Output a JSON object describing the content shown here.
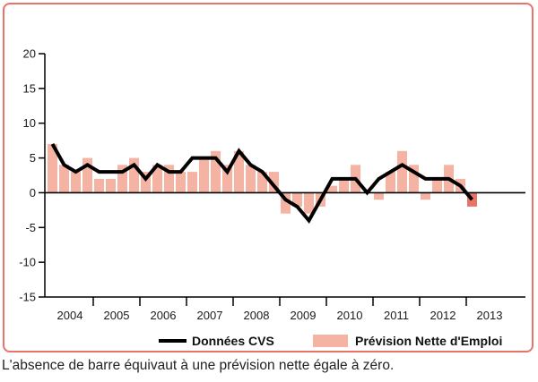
{
  "chart_data": {
    "type": "bar",
    "ylim": [
      -15,
      20
    ],
    "y_ticks": [
      "20",
      "15",
      "10",
      "5",
      "0",
      "-5",
      "-10",
      "-15"
    ],
    "year_labels": [
      "2004",
      "2005",
      "2006",
      "2007",
      "2008",
      "2009",
      "2010",
      "2011",
      "2012",
      "2013"
    ],
    "series": [
      {
        "name": "Prévision Nette d'Emploi",
        "kind": "bar",
        "color": "#f4b3a3",
        "values": [
          7,
          4,
          3,
          5,
          2,
          2,
          4,
          5,
          3,
          4,
          4,
          3,
          3,
          5,
          6,
          4,
          6,
          4,
          3,
          3,
          -3,
          -2,
          -3,
          -2,
          1,
          2,
          4,
          0,
          -1,
          3,
          6,
          4,
          -1,
          2,
          4,
          2,
          -2
        ]
      },
      {
        "name": "Données CVS",
        "kind": "line",
        "color": "#000000",
        "values": [
          7,
          4,
          3,
          4,
          3,
          3,
          3,
          4,
          2,
          4,
          3,
          3,
          5,
          5,
          5,
          3,
          6,
          4,
          3,
          1,
          -1,
          -2,
          -4,
          -1,
          2,
          2,
          2,
          0,
          2,
          3,
          4,
          3,
          2,
          2,
          2,
          1,
          -1
        ]
      }
    ],
    "highlight_color": "#e8736a",
    "grid": false,
    "legend_position": "bottom"
  },
  "legend": {
    "cvs_label": "Données CVS",
    "forecast_label": "Prévision Nette d'Emploi"
  },
  "footnote": "L'absence de barre équivaut à une prévision nette égale à zéro."
}
